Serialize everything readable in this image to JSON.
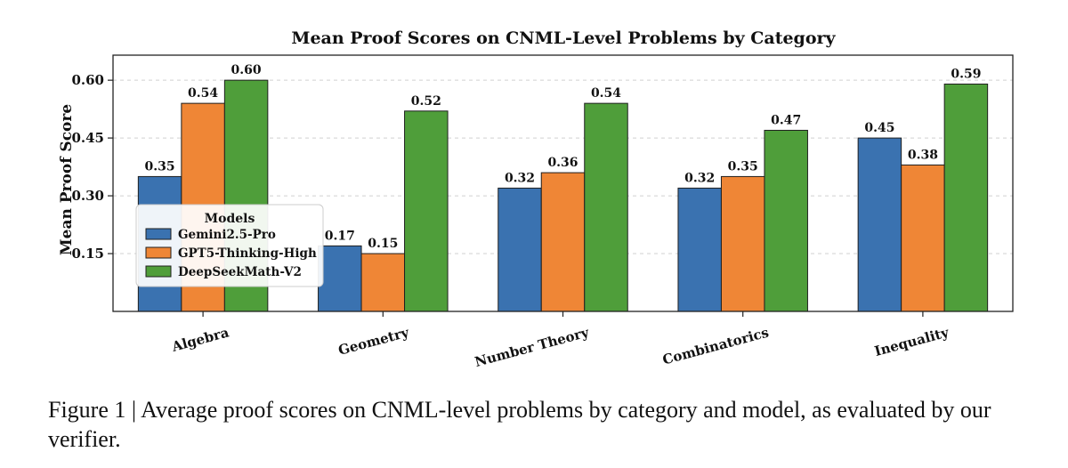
{
  "figure": {
    "caption": "Figure 1 | Average proof scores on CNML-level problems by category and model, as evaluated by our verifier."
  },
  "chart_data": {
    "type": "bar",
    "title": "Mean Proof Scores on CNML-Level Problems by Category",
    "xlabel": "",
    "ylabel": "Mean Proof Score",
    "categories": [
      "Algebra",
      "Geometry",
      "Number Theory",
      "Combinatorics",
      "Inequality"
    ],
    "series": [
      {
        "name": "Gemini2.5-Pro",
        "color": "#3a72b0",
        "values": [
          0.35,
          0.17,
          0.32,
          0.32,
          0.45
        ],
        "labels": [
          "0.35",
          "0.17",
          "0.32",
          "0.32",
          "0.45"
        ]
      },
      {
        "name": "GPT5-Thinking-High",
        "color": "#ef8636",
        "values": [
          0.54,
          0.15,
          0.36,
          0.35,
          0.38
        ],
        "labels": [
          "0.54",
          "0.15",
          "0.36",
          "0.35",
          "0.38"
        ]
      },
      {
        "name": "DeepSeekMath-V2",
        "color": "#4f9e3a",
        "values": [
          0.6,
          0.52,
          0.54,
          0.47,
          0.59
        ],
        "labels": [
          "0.60",
          "0.52",
          "0.54",
          "0.47",
          "0.59"
        ]
      }
    ],
    "ylim": [
      0,
      0.6
    ],
    "yticks": [
      0.15,
      0.3,
      0.45,
      0.6
    ],
    "ytick_labels": [
      "0.15",
      "0.30",
      "0.45",
      "0.60"
    ],
    "grid": "horizontal dashed",
    "legend": {
      "title": "Models",
      "placement": "center-left"
    }
  }
}
